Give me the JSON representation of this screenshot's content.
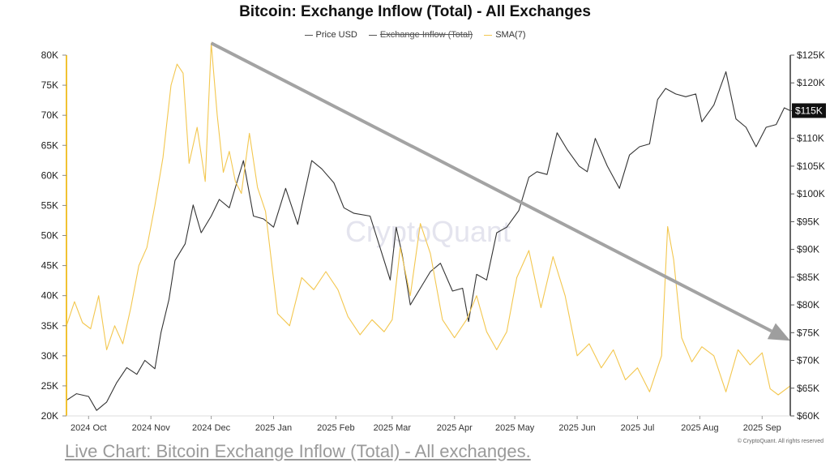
{
  "chart_data": {
    "type": "line",
    "title": "Bitcoin: Exchange Inflow (Total) - All Exchanges",
    "watermark": "CryptoQuant",
    "copyright": "© CryptoQuant. All rights reserved",
    "legend": [
      {
        "name": "Price USD",
        "color": "#555555",
        "hidden": false
      },
      {
        "name": "Exchange Inflow (Total)",
        "color": "#555555",
        "hidden": true
      },
      {
        "name": "SMA(7)",
        "color": "#f3c74f",
        "hidden": false
      }
    ],
    "legend_position": "top-center",
    "x_ticks": [
      "2024 Oct",
      "2024 Nov",
      "2024 Dec",
      "2025 Jan",
      "2025 Feb",
      "2025 Mar",
      "2025 Apr",
      "2025 May",
      "2025 Jun",
      "2025 Jul",
      "2025 Aug",
      "2025 Sep"
    ],
    "x_range": [
      "2024-09-20",
      "2025-09-15"
    ],
    "y_left": {
      "ticks": [
        "20K",
        "25K",
        "30K",
        "35K",
        "40K",
        "45K",
        "50K",
        "55K",
        "60K",
        "65K",
        "70K",
        "75K",
        "80K"
      ],
      "range": [
        20000,
        80000
      ]
    },
    "y_right": {
      "ticks": [
        "$60K",
        "$65K",
        "$70K",
        "$75K",
        "$80K",
        "$85K",
        "$90K",
        "$95K",
        "$100K",
        "$105K",
        "$110K",
        "$115K",
        "$120K",
        "$125K"
      ],
      "range": [
        60000,
        125000
      ]
    },
    "current_price_label": "$115K",
    "trend_arrow": {
      "from": [
        "2024-12-01",
        82000
      ],
      "to": [
        "2025-09-15",
        32500
      ]
    },
    "series": [
      {
        "name": "Price USD",
        "axis": "right",
        "color": "#333333",
        "x": [
          "2024-09-20",
          "2024-09-25",
          "2024-10-01",
          "2024-10-05",
          "2024-10-10",
          "2024-10-15",
          "2024-10-20",
          "2024-10-25",
          "2024-10-29",
          "2024-11-03",
          "2024-11-06",
          "2024-11-10",
          "2024-11-13",
          "2024-11-18",
          "2024-11-22",
          "2024-11-26",
          "2024-12-01",
          "2024-12-05",
          "2024-12-10",
          "2024-12-17",
          "2024-12-22",
          "2024-12-27",
          "2025-01-01",
          "2025-01-07",
          "2025-01-13",
          "2025-01-20",
          "2025-01-25",
          "2025-01-31",
          "2025-02-05",
          "2025-02-10",
          "2025-02-18",
          "2025-02-25",
          "2025-02-28",
          "2025-03-03",
          "2025-03-06",
          "2025-03-10",
          "2025-03-15",
          "2025-03-20",
          "2025-03-25",
          "2025-03-31",
          "2025-04-05",
          "2025-04-08",
          "2025-04-12",
          "2025-04-17",
          "2025-04-22",
          "2025-04-27",
          "2025-05-03",
          "2025-05-08",
          "2025-05-12",
          "2025-05-17",
          "2025-05-22",
          "2025-05-27",
          "2025-06-02",
          "2025-06-06",
          "2025-06-10",
          "2025-06-16",
          "2025-06-22",
          "2025-06-27",
          "2025-07-02",
          "2025-07-07",
          "2025-07-11",
          "2025-07-15",
          "2025-07-20",
          "2025-07-25",
          "2025-07-30",
          "2025-08-02",
          "2025-08-08",
          "2025-08-14",
          "2025-08-19",
          "2025-08-24",
          "2025-08-29",
          "2025-09-03",
          "2025-09-08",
          "2025-09-12",
          "2025-09-15"
        ],
        "y": [
          62800,
          64000,
          63500,
          61000,
          62500,
          66000,
          68700,
          67500,
          70000,
          68500,
          75000,
          81000,
          88000,
          91000,
          98000,
          93000,
          96000,
          99000,
          97500,
          106000,
          96000,
          95500,
          94000,
          101000,
          94500,
          106000,
          104500,
          102000,
          97500,
          96500,
          96000,
          88000,
          84500,
          94000,
          89000,
          80000,
          83000,
          86000,
          87500,
          82500,
          83000,
          77000,
          85500,
          84500,
          93000,
          94000,
          97000,
          103000,
          104000,
          103500,
          111000,
          108000,
          105000,
          104000,
          110000,
          105000,
          101000,
          107000,
          108500,
          109000,
          117000,
          119000,
          118000,
          117500,
          118000,
          113000,
          116000,
          122000,
          113500,
          112000,
          108500,
          112000,
          112500,
          115500,
          115000
        ]
      },
      {
        "name": "SMA(7)",
        "axis": "left",
        "color": "#f3c74f",
        "x": [
          "2024-09-20",
          "2024-09-24",
          "2024-09-28",
          "2024-10-02",
          "2024-10-06",
          "2024-10-10",
          "2024-10-14",
          "2024-10-18",
          "2024-10-22",
          "2024-10-26",
          "2024-10-30",
          "2024-11-03",
          "2024-11-07",
          "2024-11-11",
          "2024-11-14",
          "2024-11-17",
          "2024-11-20",
          "2024-11-24",
          "2024-11-28",
          "2024-12-01",
          "2024-12-04",
          "2024-12-07",
          "2024-12-10",
          "2024-12-13",
          "2024-12-16",
          "2024-12-20",
          "2024-12-24",
          "2024-12-28",
          "2025-01-03",
          "2025-01-09",
          "2025-01-15",
          "2025-01-21",
          "2025-01-27",
          "2025-02-02",
          "2025-02-07",
          "2025-02-13",
          "2025-02-19",
          "2025-02-25",
          "2025-03-01",
          "2025-03-05",
          "2025-03-10",
          "2025-03-15",
          "2025-03-20",
          "2025-03-26",
          "2025-04-01",
          "2025-04-07",
          "2025-04-12",
          "2025-04-17",
          "2025-04-22",
          "2025-04-27",
          "2025-05-02",
          "2025-05-08",
          "2025-05-14",
          "2025-05-20",
          "2025-05-26",
          "2025-06-01",
          "2025-06-07",
          "2025-06-13",
          "2025-06-19",
          "2025-06-25",
          "2025-07-01",
          "2025-07-07",
          "2025-07-13",
          "2025-07-16",
          "2025-07-19",
          "2025-07-23",
          "2025-07-28",
          "2025-08-02",
          "2025-08-08",
          "2025-08-14",
          "2025-08-20",
          "2025-08-26",
          "2025-09-01",
          "2025-09-05",
          "2025-09-09",
          "2025-09-15"
        ],
        "y": [
          35000,
          39000,
          35500,
          34500,
          40000,
          31000,
          35000,
          32000,
          38000,
          45000,
          48000,
          55000,
          63000,
          75000,
          78500,
          77000,
          62000,
          68000,
          59000,
          82000,
          70000,
          60500,
          64000,
          59000,
          57000,
          67000,
          58000,
          54000,
          37000,
          35000,
          43000,
          41000,
          44000,
          41000,
          36500,
          33500,
          36000,
          34000,
          36000,
          48000,
          40000,
          52000,
          47000,
          36000,
          33000,
          36000,
          40000,
          34000,
          31000,
          34000,
          43000,
          47500,
          38000,
          46500,
          40000,
          30000,
          32000,
          28000,
          31000,
          26000,
          28000,
          24000,
          30000,
          51500,
          46000,
          33000,
          29000,
          31500,
          30000,
          24000,
          31000,
          28500,
          30500,
          24500,
          23500,
          25000
        ]
      }
    ]
  }
}
